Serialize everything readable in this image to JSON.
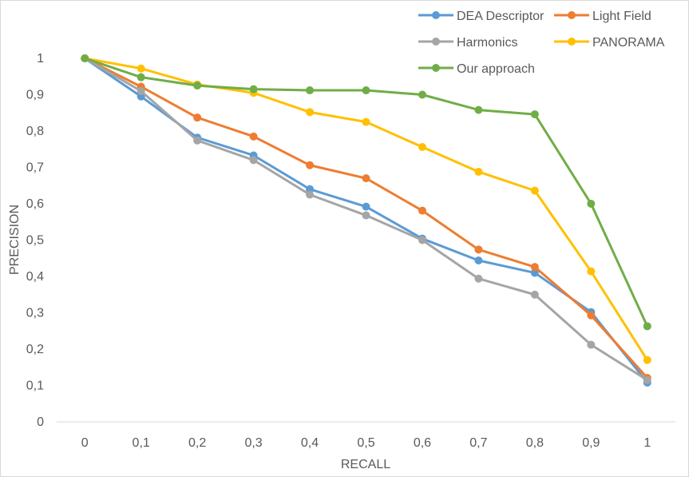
{
  "chart_data": {
    "type": "line",
    "title": "",
    "xlabel": "RECALL",
    "ylabel": "PRECISION",
    "x": [
      0,
      0.1,
      0.2,
      0.3,
      0.4,
      0.5,
      0.6,
      0.7,
      0.8,
      0.9,
      1
    ],
    "x_tick_labels": [
      "0",
      "0,1",
      "0,2",
      "0,3",
      "0,4",
      "0,5",
      "0,6",
      "0,7",
      "0,8",
      "0,9",
      "1"
    ],
    "y_tick_labels": [
      "0",
      "0,1",
      "0,2",
      "0,3",
      "0,4",
      "0,5",
      "0,6",
      "0,7",
      "0,8",
      "0,9",
      "1"
    ],
    "ylim": [
      0,
      1
    ],
    "grid": false,
    "legend_position": "top-right",
    "series": [
      {
        "name": "DEA Descriptor",
        "color": "#5B9BD5",
        "values": [
          1.0,
          0.895,
          0.782,
          0.733,
          0.64,
          0.592,
          0.504,
          0.444,
          0.41,
          0.302,
          0.108
        ]
      },
      {
        "name": "Light Field",
        "color": "#ED7D31",
        "values": [
          1.0,
          0.922,
          0.837,
          0.785,
          0.706,
          0.67,
          0.581,
          0.474,
          0.426,
          0.293,
          0.121
        ]
      },
      {
        "name": "Harmonics",
        "color": "#A5A5A5",
        "values": [
          1.0,
          0.91,
          0.774,
          0.72,
          0.625,
          0.568,
          0.5,
          0.394,
          0.35,
          0.212,
          0.115
        ]
      },
      {
        "name": "PANORAMA",
        "color": "#FFC000",
        "values": [
          1.0,
          0.972,
          0.928,
          0.905,
          0.852,
          0.825,
          0.756,
          0.688,
          0.636,
          0.414,
          0.17
        ]
      },
      {
        "name": "Our approach",
        "color": "#70AD47",
        "values": [
          1.0,
          0.948,
          0.925,
          0.915,
          0.912,
          0.912,
          0.9,
          0.858,
          0.846,
          0.6,
          0.263
        ]
      }
    ]
  }
}
